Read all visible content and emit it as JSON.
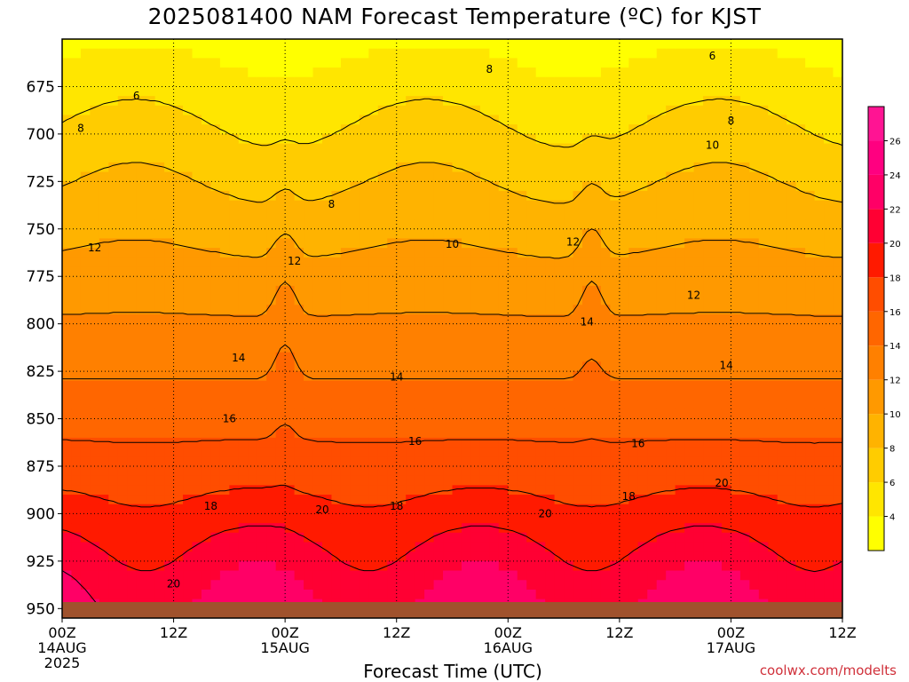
{
  "chart_data": {
    "type": "heatmap",
    "title": "2025081400 NAM Forecast Temperature (ºC) for KJST",
    "xlabel": "Forecast Time (UTC)",
    "ylabel": "",
    "credit": "coolwx.com/modelts",
    "x_ticks": [
      {
        "hours": 0,
        "label": "00Z",
        "sub": "14AUG",
        "sub2": "2025"
      },
      {
        "hours": 12,
        "label": "12Z"
      },
      {
        "hours": 24,
        "label": "00Z",
        "sub": "15AUG"
      },
      {
        "hours": 36,
        "label": "12Z"
      },
      {
        "hours": 48,
        "label": "00Z",
        "sub": "16AUG"
      },
      {
        "hours": 60,
        "label": "12Z"
      },
      {
        "hours": 72,
        "label": "00Z",
        "sub": "17AUG"
      },
      {
        "hours": 84,
        "label": "12Z"
      }
    ],
    "xlim_hours": [
      0,
      84
    ],
    "y_ticks": [
      675,
      700,
      725,
      750,
      775,
      800,
      825,
      850,
      875,
      900,
      925,
      950
    ],
    "ylim_hPa": [
      650,
      955
    ],
    "grid": true,
    "colorbar": {
      "levels": [
        4,
        6,
        8,
        10,
        12,
        14,
        16,
        18,
        20,
        22,
        24,
        26
      ],
      "colors": [
        "#ffff00",
        "#ffe600",
        "#ffcc00",
        "#ffb300",
        "#ff9900",
        "#ff8000",
        "#ff6600",
        "#ff4d00",
        "#ff1a00",
        "#ff0033",
        "#ff0066",
        "#ff0080",
        "#ff1493"
      ]
    },
    "contour_labels": [
      {
        "t": 8,
        "value": 6,
        "p": 680
      },
      {
        "t": 2,
        "value": 8,
        "p": 697
      },
      {
        "t": 29,
        "value": 8,
        "p": 737
      },
      {
        "t": 46,
        "value": 8,
        "p": 666
      },
      {
        "t": 70,
        "value": 6,
        "p": 659
      },
      {
        "t": 72,
        "value": 8,
        "p": 693
      },
      {
        "t": 70,
        "value": 10,
        "p": 706
      },
      {
        "t": 42,
        "value": 10,
        "p": 758
      },
      {
        "t": 55,
        "value": 12,
        "p": 757
      },
      {
        "t": 3.5,
        "value": 12,
        "p": 760
      },
      {
        "t": 25,
        "value": 12,
        "p": 767
      },
      {
        "t": 68,
        "value": 12,
        "p": 785
      },
      {
        "t": 19,
        "value": 14,
        "p": 818
      },
      {
        "t": 36,
        "value": 14,
        "p": 828
      },
      {
        "t": 56.5,
        "value": 14,
        "p": 799
      },
      {
        "t": 71.5,
        "value": 14,
        "p": 822
      },
      {
        "t": 18,
        "value": 16,
        "p": 850
      },
      {
        "t": 38,
        "value": 16,
        "p": 862
      },
      {
        "t": 62,
        "value": 16,
        "p": 863
      },
      {
        "t": 16,
        "value": 18,
        "p": 896
      },
      {
        "t": 36,
        "value": 18,
        "p": 896
      },
      {
        "t": 61,
        "value": 18,
        "p": 891
      },
      {
        "t": 28,
        "value": 20,
        "p": 898
      },
      {
        "t": 52,
        "value": 20,
        "p": 900
      },
      {
        "t": 71,
        "value": 20,
        "p": 884
      },
      {
        "t": 12,
        "value": 20,
        "p": 937
      }
    ],
    "note_levels": "contours every 2 ºC"
  }
}
